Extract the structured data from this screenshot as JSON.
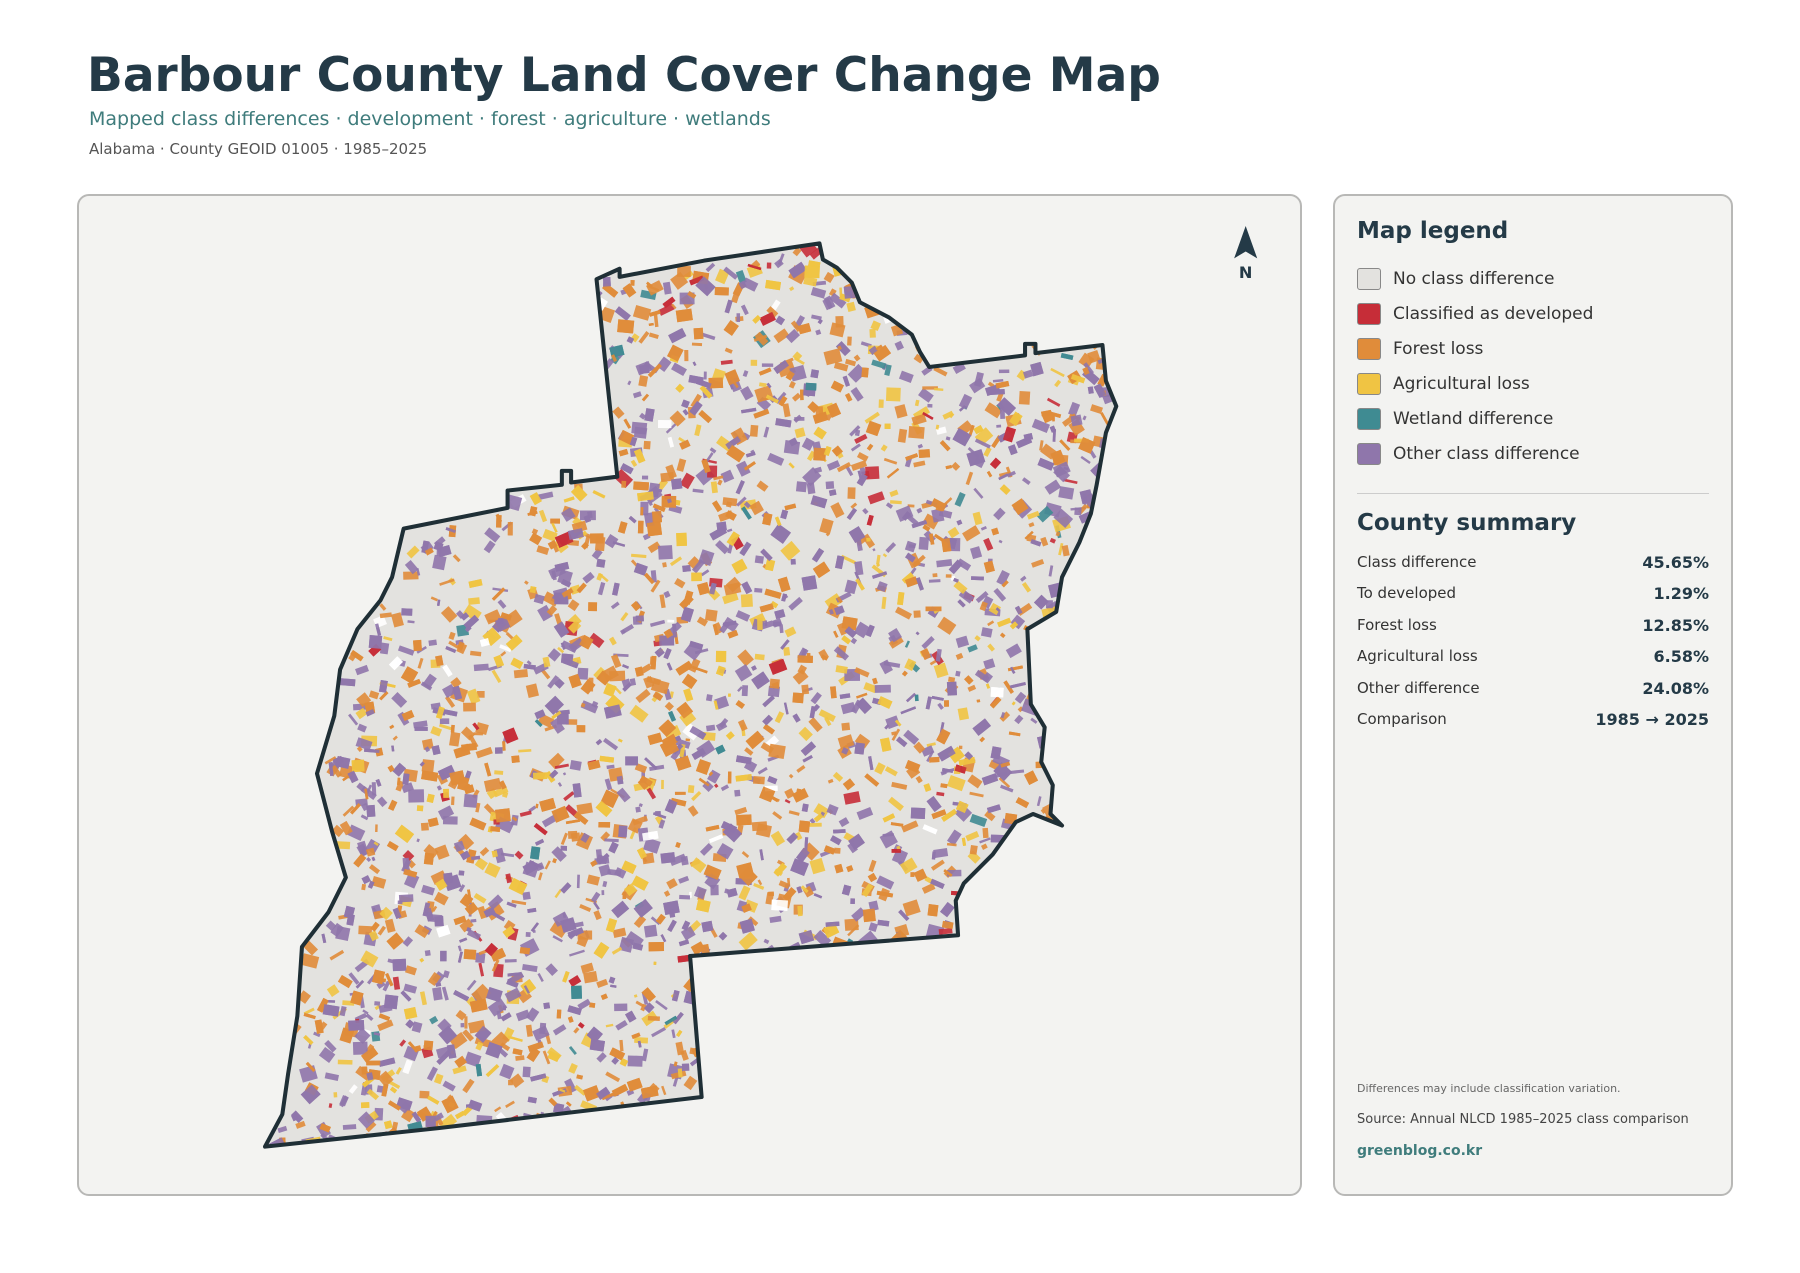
{
  "header": {
    "title": "Barbour County Land Cover Change Map",
    "subtitle": "Mapped class differences · development · forest · agriculture · wetlands",
    "meta": "Alabama · County GEOID 01005 · 1985–2025"
  },
  "map": {
    "north_label": "N"
  },
  "legend": {
    "title": "Map legend",
    "items": [
      {
        "label": "No class difference",
        "color": "#e3e2df"
      },
      {
        "label": "Classified as developed",
        "color": "#c62d38"
      },
      {
        "label": "Forest loss",
        "color": "#e08c3a"
      },
      {
        "label": "Agricultural loss",
        "color": "#f0c443"
      },
      {
        "label": "Wetland difference",
        "color": "#3f8b92"
      },
      {
        "label": "Other class difference",
        "color": "#8f76ab"
      }
    ]
  },
  "summary": {
    "title": "County summary",
    "rows": [
      [
        "Class difference",
        "45.65%"
      ],
      [
        "To developed",
        "1.29%"
      ],
      [
        "Forest loss",
        "12.85%"
      ],
      [
        "Agricultural loss",
        "6.58%"
      ],
      [
        "Other difference",
        "24.08%"
      ],
      [
        "Comparison",
        "1985 → 2025"
      ]
    ]
  },
  "footer": {
    "note": "Differences may include classification variation.",
    "source": "Source: Annual NLCD 1985–2025 class comparison",
    "site": "greenblog.co.kr"
  }
}
